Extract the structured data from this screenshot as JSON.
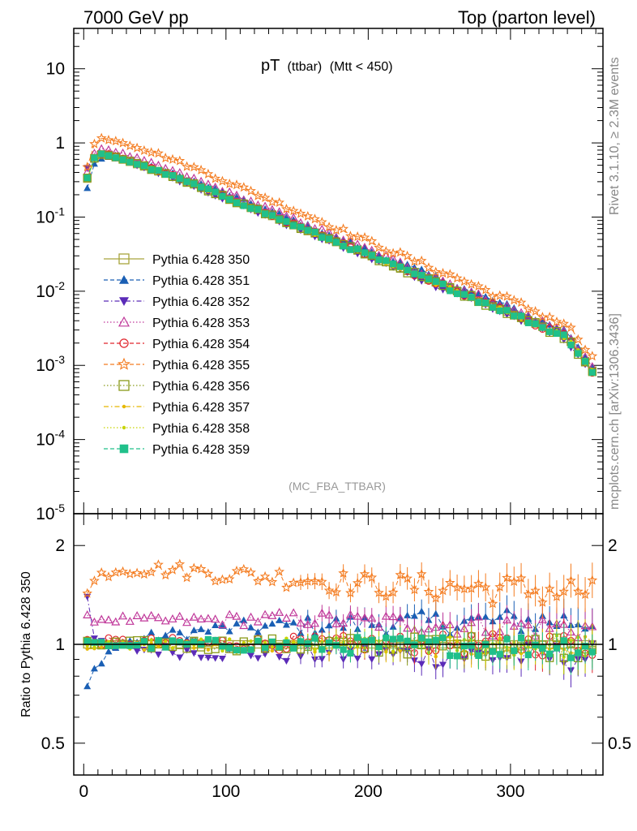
{
  "header": {
    "left": "7000 GeV pp",
    "right": "Top (parton level)"
  },
  "side_labels": {
    "rivet": "Rivet 3.1.10, ≥ 2.3M events",
    "mcplots": "mcplots.cern.ch [arXiv:1306.3436]"
  },
  "chart_data": [
    {
      "type": "line",
      "panel": "main",
      "title": "pT",
      "title_sub": "(ttbar)",
      "title_cut": "(Mtt < 450)",
      "analysis_tag": "(MC_FBA_TTBAR)",
      "yscale": "log",
      "xlim": [
        -7,
        365
      ],
      "ylim": [
        1e-05,
        35
      ],
      "ytick_labels": [
        {
          "base": "10",
          "exp": "-5",
          "value": 1e-05
        },
        {
          "base": "10",
          "exp": "-4",
          "value": 0.0001
        },
        {
          "base": "10",
          "exp": "-3",
          "value": 0.001
        },
        {
          "base": "10",
          "exp": "-2",
          "value": 0.01
        },
        {
          "base": "10",
          "exp": "-1",
          "value": 0.1
        },
        {
          "base": "1",
          "exp": "",
          "value": 1
        },
        {
          "base": "10",
          "exp": "",
          "value": 10
        }
      ],
      "legend_placement": "left",
      "reference_shape": {
        "description": "Pythia 6.428 350 reference distribution",
        "x": [
          2.5,
          7.5,
          12.5,
          17.5,
          25,
          40,
          60,
          80,
          100,
          120,
          140,
          160,
          180,
          200,
          220,
          240,
          260,
          280,
          300,
          320,
          340,
          357.5
        ],
        "y": [
          0.33,
          0.62,
          0.7,
          0.68,
          0.62,
          0.5,
          0.37,
          0.265,
          0.185,
          0.13,
          0.09,
          0.063,
          0.044,
          0.031,
          0.0215,
          0.015,
          0.0105,
          0.0073,
          0.0051,
          0.0035,
          0.0024,
          0.00085
        ]
      },
      "series": [
        {
          "name": "Pythia 6.428 350",
          "color": "#a8a53c",
          "marker": "open-square",
          "dash": "solid"
        },
        {
          "name": "Pythia 6.428 351",
          "color": "#1a5fb4",
          "marker": "filled-triangle-up",
          "dash": "dashed"
        },
        {
          "name": "Pythia 6.428 352",
          "color": "#5b2bb8",
          "marker": "filled-triangle-down",
          "dash": "dashdot"
        },
        {
          "name": "Pythia 6.428 353",
          "color": "#c0389a",
          "marker": "open-triangle-up",
          "dash": "dotted"
        },
        {
          "name": "Pythia 6.428 354",
          "color": "#e0262e",
          "marker": "open-circle",
          "dash": "dashed"
        },
        {
          "name": "Pythia 6.428 355",
          "color": "#f47c20",
          "marker": "open-star",
          "dash": "dashed"
        },
        {
          "name": "Pythia 6.428 356",
          "color": "#8a9a1a",
          "marker": "open-square",
          "dash": "dotted"
        },
        {
          "name": "Pythia 6.428 357",
          "color": "#e6b800",
          "marker": "small-dot",
          "dash": "dashdot"
        },
        {
          "name": "Pythia 6.428 358",
          "color": "#c8d400",
          "marker": "small-dot",
          "dash": "dotted"
        },
        {
          "name": "Pythia 6.428 359",
          "color": "#20c08a",
          "marker": "filled-square",
          "dash": "dashed"
        }
      ]
    },
    {
      "type": "line",
      "panel": "ratio",
      "ylabel": "Ratio to Pythia 6.428 350",
      "yscale": "log",
      "xlim": [
        -7,
        365
      ],
      "ylim": [
        0.4,
        2.5
      ],
      "xtick_labels": [
        "0",
        "100",
        "200",
        "300"
      ],
      "xticks": [
        0,
        100,
        200,
        300
      ],
      "ytick_labels": [
        "0.5",
        "1",
        "2"
      ],
      "yticks": [
        0.5,
        1,
        2
      ],
      "ratio_profiles": [
        {
          "name": "Pythia 6.428 350",
          "levels": [
            [
              0,
              1.0
            ],
            [
              360,
              1.0
            ]
          ],
          "noise": 0.0
        },
        {
          "name": "Pythia 6.428 351",
          "levels": [
            [
              2.5,
              0.74
            ],
            [
              10,
              0.88
            ],
            [
              20,
              0.97
            ],
            [
              40,
              1.04
            ],
            [
              100,
              1.12
            ],
            [
              200,
              1.16
            ],
            [
              300,
              1.18
            ],
            [
              360,
              1.18
            ]
          ],
          "noise": 0.03
        },
        {
          "name": "Pythia 6.428 352",
          "levels": [
            [
              2.5,
              1.43
            ],
            [
              8,
              1.0
            ],
            [
              30,
              0.97
            ],
            [
              100,
              0.94
            ],
            [
              200,
              0.93
            ],
            [
              300,
              0.92
            ],
            [
              360,
              0.92
            ]
          ],
          "noise": 0.03
        },
        {
          "name": "Pythia 6.428 353",
          "levels": [
            [
              2.5,
              1.2
            ],
            [
              60,
              1.18
            ],
            [
              150,
              1.2
            ],
            [
              250,
              1.15
            ],
            [
              360,
              1.12
            ]
          ],
          "noise": 0.025
        },
        {
          "name": "Pythia 6.428 354",
          "levels": [
            [
              2.5,
              1.02
            ],
            [
              100,
              1.01
            ],
            [
              360,
              1.0
            ]
          ],
          "noise": 0.025
        },
        {
          "name": "Pythia 6.428 355",
          "levels": [
            [
              2.5,
              1.42
            ],
            [
              10,
              1.62
            ],
            [
              25,
              1.7
            ],
            [
              60,
              1.69
            ],
            [
              110,
              1.63
            ],
            [
              160,
              1.58
            ],
            [
              200,
              1.52
            ],
            [
              250,
              1.5
            ],
            [
              300,
              1.47
            ],
            [
              360,
              1.45
            ]
          ],
          "noise": 0.035
        },
        {
          "name": "Pythia 6.428 356",
          "levels": [
            [
              2.5,
              1.0
            ],
            [
              360,
              0.99
            ]
          ],
          "noise": 0.025
        },
        {
          "name": "Pythia 6.428 357",
          "levels": [
            [
              2.5,
              0.99
            ],
            [
              360,
              0.98
            ]
          ],
          "noise": 0.025
        },
        {
          "name": "Pythia 6.428 358",
          "levels": [
            [
              2.5,
              1.0
            ],
            [
              360,
              0.99
            ]
          ],
          "noise": 0.025
        },
        {
          "name": "Pythia 6.428 359",
          "levels": [
            [
              2.5,
              1.0
            ],
            [
              360,
              0.99
            ]
          ],
          "noise": 0.025
        }
      ]
    }
  ]
}
